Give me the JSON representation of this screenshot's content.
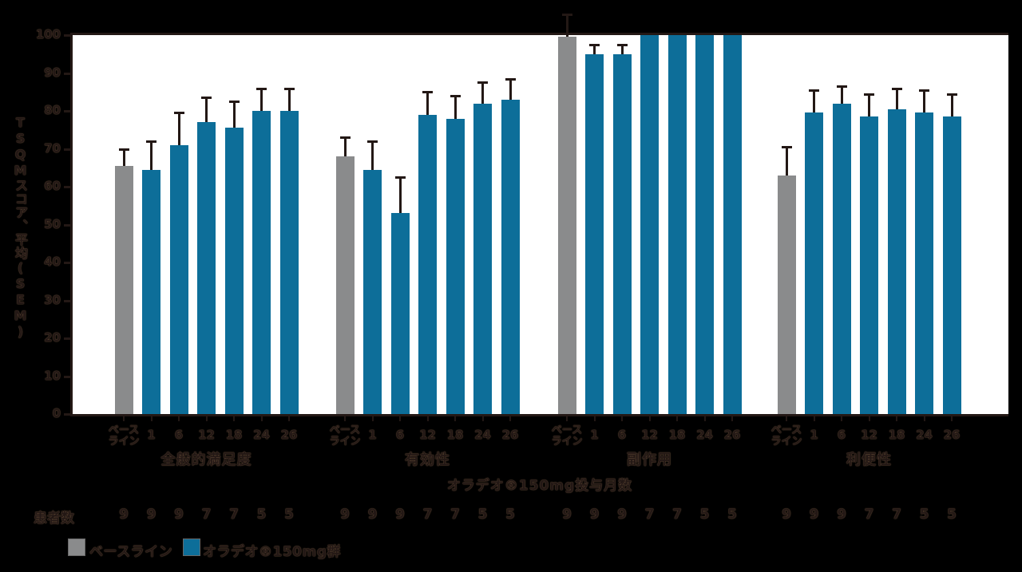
{
  "chart_data": {
    "type": "bar",
    "title": "",
    "ylabel": "TSQMスコア、平均(SEM)",
    "xlabel": "オラデオ®150mg投与月数",
    "ylim": [
      0,
      100
    ],
    "yticks": [
      0,
      10,
      20,
      30,
      40,
      50,
      60,
      70,
      80,
      90,
      100
    ],
    "grid": false,
    "baseline_tick_label": "ベース\nライン",
    "month_tick_labels": [
      "1",
      "6",
      "12",
      "18",
      "24",
      "26"
    ],
    "groups": [
      {
        "label": "全般的満足度",
        "values": [
          65.5,
          64.5,
          71,
          77,
          75.5,
          80,
          80
        ],
        "sem_tops": [
          70,
          72,
          79.5,
          83.5,
          82.5,
          86,
          86
        ]
      },
      {
        "label": "有効性",
        "values": [
          68,
          64.5,
          53,
          79,
          78,
          82,
          83
        ],
        "sem_tops": [
          73,
          72,
          62.5,
          85,
          84,
          87.5,
          88.5
        ]
      },
      {
        "label": "副作用",
        "values": [
          99.5,
          95,
          95,
          100,
          100,
          100,
          100
        ],
        "sem_tops": [
          105.5,
          97.5,
          97.5,
          null,
          null,
          null,
          null
        ]
      },
      {
        "label": "利便性",
        "values": [
          63,
          79.5,
          82,
          78.5,
          80.5,
          79.5,
          78.5
        ],
        "sem_tops": [
          70.5,
          85.5,
          86.5,
          84.5,
          86,
          85.5,
          84.5
        ]
      }
    ],
    "patients_label": "患者数",
    "patients": [
      [
        9,
        9,
        9,
        7,
        7,
        5,
        5
      ],
      [
        9,
        9,
        9,
        7,
        7,
        5,
        5
      ],
      [
        9,
        9,
        9,
        7,
        7,
        5,
        5
      ],
      [
        9,
        9,
        9,
        7,
        7,
        5,
        5
      ]
    ],
    "legend": [
      {
        "label": "ベースライン",
        "color": "#8a8b8c"
      },
      {
        "label": "オラデオ®150mg群",
        "color": "#0d6e99"
      }
    ],
    "colors": {
      "baseline_bar": "#8a8b8c",
      "treatment_bar": "#0d6e99",
      "ink": "#231815",
      "plot_background": "#ffffff",
      "page_background": "#000000"
    },
    "legend_position": "bottom-left"
  }
}
